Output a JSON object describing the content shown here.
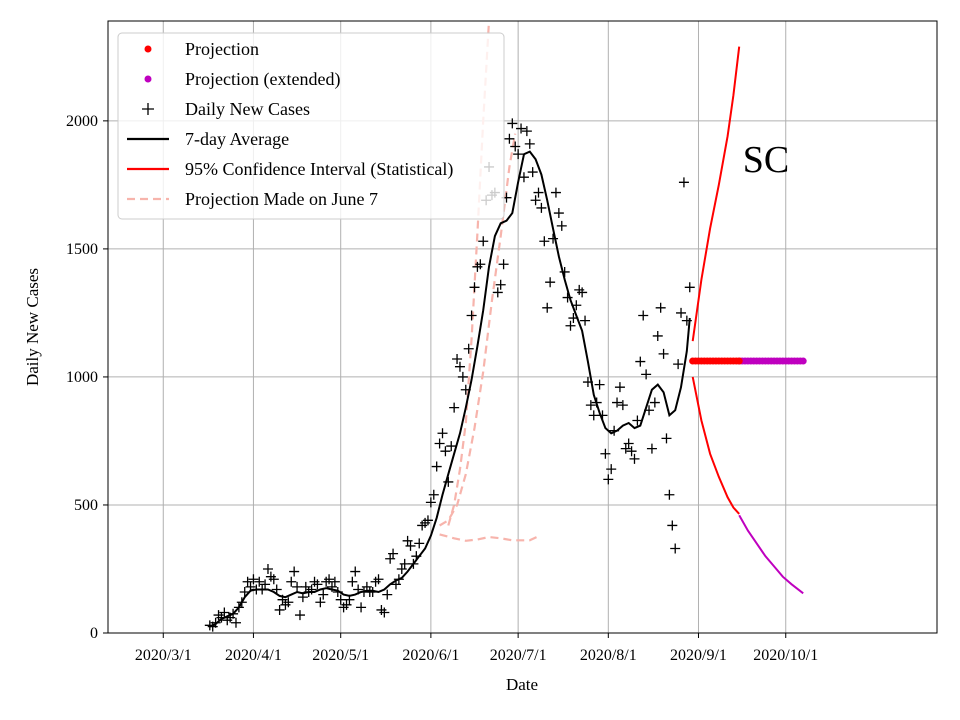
{
  "chart_data": {
    "type": "line",
    "title": "",
    "xlabel": "Date",
    "ylabel": "Daily New Cases",
    "annotation": "SC",
    "xlim": [
      -19,
      266
    ],
    "ylim": [
      0,
      2390
    ],
    "grid": true,
    "legend_position": "top-left",
    "x_ticks": [
      {
        "day": 0,
        "label": "2020/3/1"
      },
      {
        "day": 31,
        "label": "2020/4/1"
      },
      {
        "day": 61,
        "label": "2020/5/1"
      },
      {
        "day": 92,
        "label": "2020/6/1"
      },
      {
        "day": 122,
        "label": "2020/7/1"
      },
      {
        "day": 153,
        "label": "2020/8/1"
      },
      {
        "day": 184,
        "label": "2020/9/1"
      },
      {
        "day": 214,
        "label": "2020/10/1"
      }
    ],
    "y_ticks": [
      0,
      500,
      1000,
      1500,
      2000
    ],
    "colors": {
      "projection": "#ff0000",
      "projection_extended": "#bf00bf",
      "daily": "#000000",
      "avg": "#000000",
      "ci": "#ff0000",
      "june7": "#f7b4ac"
    },
    "legend": [
      {
        "label": "Projection",
        "kind": "dot",
        "color": "#ff0000"
      },
      {
        "label": "Projection (extended)",
        "kind": "dot",
        "color": "#bf00bf"
      },
      {
        "label": "Daily New Cases",
        "kind": "plus",
        "color": "#000000"
      },
      {
        "label": "7-day Average",
        "kind": "line",
        "color": "#000000"
      },
      {
        "label": "95% Confidence Interval (Statistical)",
        "kind": "line",
        "color": "#ff0000"
      },
      {
        "label": "Projection Made on June 7",
        "kind": "dash",
        "color": "#f7b4ac"
      }
    ],
    "daily_cases": [
      [
        16,
        30
      ],
      [
        17,
        25
      ],
      [
        18,
        40
      ],
      [
        19,
        70
      ],
      [
        20,
        60
      ],
      [
        21,
        80
      ],
      [
        22,
        50
      ],
      [
        23,
        60
      ],
      [
        24,
        75
      ],
      [
        25,
        40
      ],
      [
        26,
        100
      ],
      [
        27,
        120
      ],
      [
        28,
        160
      ],
      [
        29,
        200
      ],
      [
        30,
        180
      ],
      [
        31,
        210
      ],
      [
        32,
        170
      ],
      [
        33,
        200
      ],
      [
        34,
        170
      ],
      [
        35,
        190
      ],
      [
        36,
        250
      ],
      [
        37,
        220
      ],
      [
        38,
        210
      ],
      [
        39,
        170
      ],
      [
        40,
        90
      ],
      [
        41,
        130
      ],
      [
        42,
        110
      ],
      [
        43,
        120
      ],
      [
        44,
        200
      ],
      [
        45,
        240
      ],
      [
        46,
        180
      ],
      [
        47,
        70
      ],
      [
        48,
        140
      ],
      [
        49,
        180
      ],
      [
        50,
        160
      ],
      [
        51,
        170
      ],
      [
        52,
        200
      ],
      [
        53,
        190
      ],
      [
        54,
        120
      ],
      [
        55,
        150
      ],
      [
        56,
        200
      ],
      [
        57,
        210
      ],
      [
        58,
        180
      ],
      [
        59,
        200
      ],
      [
        60,
        160
      ],
      [
        61,
        130
      ],
      [
        62,
        100
      ],
      [
        63,
        110
      ],
      [
        64,
        130
      ],
      [
        65,
        200
      ],
      [
        66,
        240
      ],
      [
        67,
        170
      ],
      [
        68,
        100
      ],
      [
        69,
        160
      ],
      [
        70,
        180
      ],
      [
        71,
        160
      ],
      [
        72,
        160
      ],
      [
        73,
        200
      ],
      [
        74,
        210
      ],
      [
        75,
        90
      ],
      [
        76,
        80
      ],
      [
        77,
        150
      ],
      [
        78,
        290
      ],
      [
        79,
        310
      ],
      [
        80,
        190
      ],
      [
        81,
        210
      ],
      [
        82,
        250
      ],
      [
        83,
        270
      ],
      [
        84,
        360
      ],
      [
        85,
        340
      ],
      [
        86,
        270
      ],
      [
        87,
        300
      ],
      [
        88,
        350
      ],
      [
        89,
        420
      ],
      [
        90,
        430
      ],
      [
        91,
        440
      ],
      [
        92,
        510
      ],
      [
        93,
        540
      ],
      [
        94,
        650
      ],
      [
        95,
        740
      ],
      [
        96,
        780
      ],
      [
        97,
        710
      ],
      [
        98,
        590
      ],
      [
        99,
        730
      ],
      [
        100,
        880
      ],
      [
        101,
        1070
      ],
      [
        102,
        1040
      ],
      [
        103,
        1000
      ],
      [
        104,
        950
      ],
      [
        105,
        1110
      ],
      [
        106,
        1240
      ],
      [
        107,
        1350
      ],
      [
        108,
        1430
      ],
      [
        109,
        1440
      ],
      [
        110,
        1530
      ],
      [
        111,
        1690
      ],
      [
        112,
        1820
      ],
      [
        113,
        1710
      ],
      [
        114,
        1720
      ],
      [
        115,
        1330
      ],
      [
        116,
        1360
      ],
      [
        117,
        1440
      ],
      [
        118,
        1700
      ],
      [
        119,
        1930
      ],
      [
        120,
        1990
      ],
      [
        121,
        1900
      ],
      [
        122,
        1870
      ],
      [
        123,
        1970
      ],
      [
        124,
        1780
      ],
      [
        125,
        1960
      ],
      [
        126,
        1910
      ],
      [
        127,
        1800
      ],
      [
        128,
        1690
      ],
      [
        129,
        1720
      ],
      [
        130,
        1660
      ],
      [
        131,
        1530
      ],
      [
        132,
        1270
      ],
      [
        133,
        1370
      ],
      [
        134,
        1540
      ],
      [
        135,
        1720
      ],
      [
        136,
        1640
      ],
      [
        137,
        1590
      ],
      [
        138,
        1410
      ],
      [
        139,
        1310
      ],
      [
        140,
        1200
      ],
      [
        141,
        1230
      ],
      [
        142,
        1280
      ],
      [
        143,
        1340
      ],
      [
        144,
        1330
      ],
      [
        145,
        1220
      ],
      [
        146,
        980
      ],
      [
        147,
        890
      ],
      [
        148,
        850
      ],
      [
        149,
        900
      ],
      [
        150,
        970
      ],
      [
        151,
        850
      ],
      [
        152,
        700
      ],
      [
        153,
        600
      ],
      [
        154,
        640
      ],
      [
        155,
        790
      ],
      [
        156,
        900
      ],
      [
        157,
        960
      ],
      [
        158,
        890
      ],
      [
        159,
        720
      ],
      [
        160,
        740
      ],
      [
        161,
        710
      ],
      [
        162,
        680
      ],
      [
        163,
        830
      ],
      [
        164,
        1060
      ],
      [
        165,
        1240
      ],
      [
        166,
        1010
      ],
      [
        167,
        870
      ],
      [
        168,
        720
      ],
      [
        169,
        900
      ],
      [
        170,
        1160
      ],
      [
        171,
        1270
      ],
      [
        172,
        1090
      ],
      [
        173,
        760
      ],
      [
        174,
        540
      ],
      [
        175,
        420
      ],
      [
        176,
        330
      ],
      [
        177,
        1050
      ],
      [
        178,
        1250
      ],
      [
        179,
        1760
      ],
      [
        180,
        1220
      ],
      [
        181,
        1350
      ]
    ],
    "seven_day_avg": [
      [
        16,
        25
      ],
      [
        18,
        35
      ],
      [
        20,
        55
      ],
      [
        22,
        65
      ],
      [
        24,
        75
      ],
      [
        26,
        100
      ],
      [
        28,
        140
      ],
      [
        30,
        165
      ],
      [
        32,
        170
      ],
      [
        34,
        170
      ],
      [
        36,
        170
      ],
      [
        38,
        160
      ],
      [
        40,
        145
      ],
      [
        42,
        140
      ],
      [
        44,
        150
      ],
      [
        46,
        160
      ],
      [
        48,
        155
      ],
      [
        50,
        160
      ],
      [
        52,
        160
      ],
      [
        54,
        170
      ],
      [
        56,
        175
      ],
      [
        58,
        170
      ],
      [
        60,
        165
      ],
      [
        62,
        150
      ],
      [
        64,
        145
      ],
      [
        66,
        150
      ],
      [
        68,
        160
      ],
      [
        70,
        165
      ],
      [
        72,
        165
      ],
      [
        74,
        160
      ],
      [
        76,
        170
      ],
      [
        78,
        190
      ],
      [
        80,
        205
      ],
      [
        82,
        215
      ],
      [
        84,
        240
      ],
      [
        86,
        270
      ],
      [
        88,
        300
      ],
      [
        90,
        330
      ],
      [
        92,
        380
      ],
      [
        94,
        450
      ],
      [
        96,
        540
      ],
      [
        98,
        620
      ],
      [
        100,
        700
      ],
      [
        102,
        780
      ],
      [
        104,
        880
      ],
      [
        106,
        990
      ],
      [
        108,
        1120
      ],
      [
        110,
        1260
      ],
      [
        112,
        1430
      ],
      [
        114,
        1550
      ],
      [
        116,
        1600
      ],
      [
        118,
        1610
      ],
      [
        120,
        1640
      ],
      [
        122,
        1760
      ],
      [
        124,
        1870
      ],
      [
        126,
        1880
      ],
      [
        128,
        1850
      ],
      [
        130,
        1790
      ],
      [
        132,
        1690
      ],
      [
        134,
        1580
      ],
      [
        136,
        1470
      ],
      [
        138,
        1380
      ],
      [
        140,
        1300
      ],
      [
        142,
        1240
      ],
      [
        144,
        1180
      ],
      [
        146,
        1060
      ],
      [
        148,
        930
      ],
      [
        150,
        860
      ],
      [
        152,
        800
      ],
      [
        154,
        780
      ],
      [
        156,
        790
      ],
      [
        158,
        810
      ],
      [
        160,
        820
      ],
      [
        162,
        800
      ],
      [
        164,
        810
      ],
      [
        166,
        880
      ],
      [
        168,
        950
      ],
      [
        170,
        970
      ],
      [
        172,
        940
      ],
      [
        174,
        850
      ],
      [
        176,
        870
      ],
      [
        178,
        960
      ],
      [
        180,
        1100
      ],
      [
        181,
        1230
      ]
    ],
    "projection": {
      "days": [
        182,
        183,
        184,
        185,
        186,
        187,
        188,
        189,
        190,
        191,
        192,
        193,
        194,
        195,
        196,
        197,
        198
      ],
      "value": 1062
    },
    "projection_extended": {
      "days": [
        198,
        199,
        200,
        201,
        202,
        203,
        204,
        205,
        206,
        207,
        208,
        209,
        210,
        211,
        212,
        213,
        214,
        215,
        216,
        217,
        218,
        219,
        220
      ],
      "value": 1062
    },
    "ci_upper": [
      [
        182,
        1140
      ],
      [
        185,
        1380
      ],
      [
        188,
        1580
      ],
      [
        191,
        1750
      ],
      [
        194,
        1940
      ],
      [
        196,
        2100
      ],
      [
        198,
        2290
      ]
    ],
    "ci_lower": [
      [
        182,
        1000
      ],
      [
        185,
        830
      ],
      [
        188,
        700
      ],
      [
        191,
        610
      ],
      [
        194,
        530
      ],
      [
        196,
        490
      ],
      [
        198,
        465
      ]
    ],
    "ci_lower_extended": [
      [
        198,
        460
      ],
      [
        201,
        400
      ],
      [
        204,
        350
      ],
      [
        207,
        300
      ],
      [
        210,
        260
      ],
      [
        213,
        220
      ],
      [
        216,
        190
      ],
      [
        220,
        155
      ]
    ],
    "june7_upper": [
      [
        98,
        420
      ],
      [
        100,
        500
      ],
      [
        102,
        640
      ],
      [
        104,
        820
      ],
      [
        106,
        1150
      ],
      [
        108,
        1560
      ],
      [
        110,
        2000
      ],
      [
        112,
        2390
      ]
    ],
    "june7_lower": [
      [
        95,
        420
      ],
      [
        98,
        440
      ],
      [
        101,
        500
      ],
      [
        104,
        620
      ],
      [
        107,
        800
      ],
      [
        110,
        1020
      ],
      [
        113,
        1300
      ],
      [
        116,
        1550
      ],
      [
        119,
        1820
      ],
      [
        121,
        1950
      ]
    ],
    "june7_bottom": [
      [
        95,
        385
      ],
      [
        100,
        370
      ],
      [
        104,
        360
      ],
      [
        108,
        365
      ],
      [
        112,
        375
      ],
      [
        116,
        370
      ],
      [
        120,
        362
      ],
      [
        126,
        362
      ],
      [
        129,
        378
      ]
    ]
  }
}
